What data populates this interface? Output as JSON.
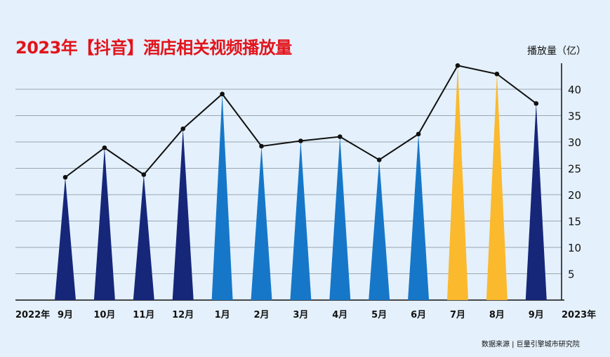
{
  "title": "2023年【抖音】酒店相关视频播放量",
  "unit_label": "播放量（亿）",
  "source": "数据来源 | 巨量引擎城市研究院",
  "colors": {
    "background": "#e4f0fb",
    "title": "#e3131b",
    "dark_blue": "#16277a",
    "mid_blue": "#1677c9",
    "yellow": "#fbb92e",
    "line": "#111111",
    "grid": "#9aa6b2"
  },
  "chart_data": {
    "type": "bar",
    "title": "2023年【抖音】酒店相关视频播放量",
    "ylabel": "播放量（亿）",
    "ylim": [
      0,
      45
    ],
    "yticks": [
      5,
      10,
      15,
      20,
      25,
      30,
      35,
      40
    ],
    "grid": true,
    "y_axis_side": "right",
    "start_label": "2022年",
    "end_label": "2023年",
    "categories": [
      "9月",
      "10月",
      "11月",
      "12月",
      "1月",
      "2月",
      "3月",
      "4月",
      "5月",
      "6月",
      "7月",
      "8月",
      "9月"
    ],
    "values": [
      23.3,
      28.9,
      23.8,
      32.5,
      39.1,
      29.2,
      30.2,
      31.0,
      26.6,
      31.5,
      44.5,
      42.9,
      37.3
    ],
    "bar_colors": [
      "#16277a",
      "#16277a",
      "#16277a",
      "#16277a",
      "#1677c9",
      "#1677c9",
      "#1677c9",
      "#1677c9",
      "#1677c9",
      "#1677c9",
      "#fbb92e",
      "#fbb92e",
      "#16277a"
    ],
    "bar_shape": "triangle",
    "overlay_line": true
  }
}
